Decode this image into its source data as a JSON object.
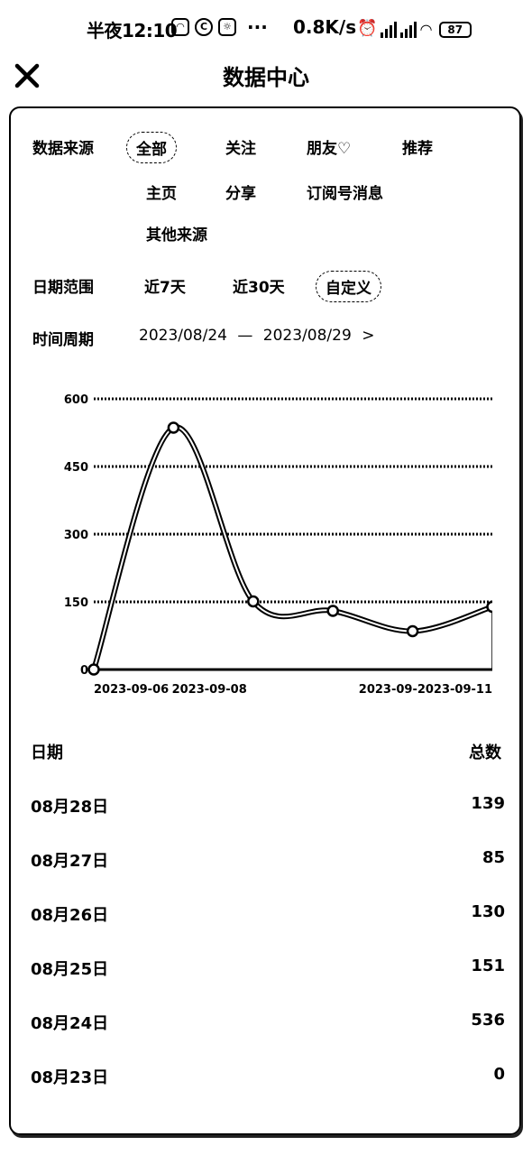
{
  "status_bar": {
    "time": "半夜12:10",
    "dots": "···",
    "net_speed": "0.8K/s",
    "battery": "87"
  },
  "header": {
    "title": "数据中心"
  },
  "filters": {
    "source_label": "数据来源",
    "sources": [
      "全部",
      "关注",
      "朋友♡",
      "推荐",
      "主页",
      "分享",
      "订阅号消息",
      "其他来源"
    ],
    "source_selected": "全部",
    "date_range_label": "日期范围",
    "date_ranges": [
      "近7天",
      "近30天",
      "自定义"
    ],
    "date_range_selected": "自定义",
    "period_label": "时间周期",
    "period_start": "2023/08/24",
    "period_sep": "—",
    "period_end": "2023/08/29",
    "period_chevron": ">"
  },
  "chart_data": {
    "type": "line",
    "x_tick_labels": [
      "2023-09-06",
      "2023-09-08",
      "2023-09-2023-09-11"
    ],
    "y_ticks": [
      0,
      150,
      300,
      450,
      600
    ],
    "ylim": [
      0,
      600
    ],
    "values": [
      0,
      536,
      151,
      130,
      85,
      139
    ],
    "grid": true,
    "smooth": true
  },
  "table": {
    "col_date": "日期",
    "col_total": "总数",
    "rows": [
      {
        "date": "08月28日",
        "total": "139"
      },
      {
        "date": "08月27日",
        "total": "85"
      },
      {
        "date": "08月26日",
        "total": "130"
      },
      {
        "date": "08月25日",
        "total": "151"
      },
      {
        "date": "08月24日",
        "total": "536"
      },
      {
        "date": "08月23日",
        "total": "0"
      }
    ]
  }
}
